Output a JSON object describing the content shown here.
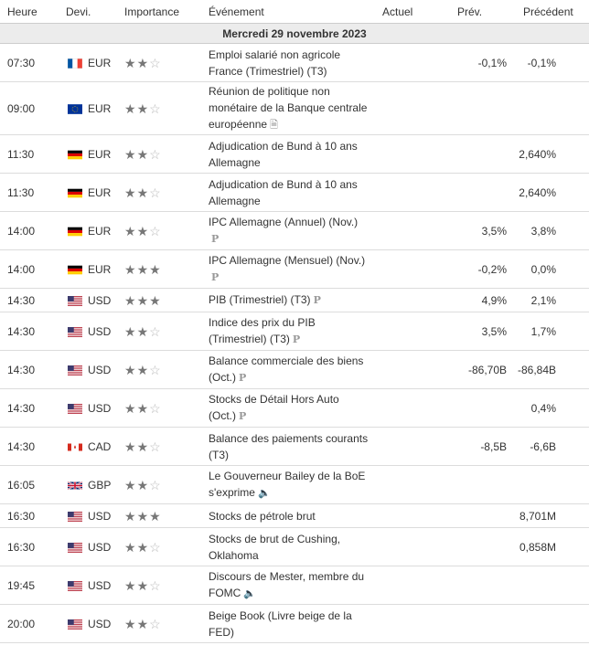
{
  "headers": {
    "time": "Heure",
    "currency": "Devi.",
    "importance": "Importance",
    "event": "Événement",
    "actual": "Actuel",
    "forecast": "Prév.",
    "previous": "Précédent"
  },
  "date_label": "Mercredi 29 novembre 2023",
  "rows": [
    {
      "time": "07:30",
      "flag": "fr",
      "cur": "EUR",
      "stars": 2,
      "lines": [
        "Emploi salarié non agricole",
        "France (Trimestriel) (T3)"
      ],
      "icon": "",
      "actual": "",
      "forecast": "-0,1%",
      "previous": "-0,1%"
    },
    {
      "time": "09:00",
      "flag": "eu",
      "cur": "EUR",
      "stars": 2,
      "lines": [
        "Réunion de politique non",
        "monétaire de la Banque centrale",
        "européenne"
      ],
      "icon": "document-icon",
      "actual": "",
      "forecast": "",
      "previous": ""
    },
    {
      "time": "11:30",
      "flag": "de",
      "cur": "EUR",
      "stars": 2,
      "lines": [
        "Adjudication de Bund à 10 ans",
        "Allemagne"
      ],
      "icon": "",
      "actual": "",
      "forecast": "",
      "previous": "2,640%"
    },
    {
      "time": "11:30",
      "flag": "de",
      "cur": "EUR",
      "stars": 2,
      "lines": [
        "Adjudication de Bund à 10 ans",
        "Allemagne"
      ],
      "icon": "",
      "actual": "",
      "forecast": "",
      "previous": "2,640%"
    },
    {
      "time": "14:00",
      "flag": "de",
      "cur": "EUR",
      "stars": 2,
      "lines": [
        "IPC Allemagne (Annuel) (Nov.)",
        ""
      ],
      "icon": "preliminary-icon",
      "actual": "",
      "forecast": "3,5%",
      "previous": "3,8%"
    },
    {
      "time": "14:00",
      "flag": "de",
      "cur": "EUR",
      "stars": 3,
      "lines": [
        "IPC Allemagne (Mensuel) (Nov.)",
        ""
      ],
      "icon": "preliminary-icon",
      "actual": "",
      "forecast": "-0,2%",
      "previous": "0,0%"
    },
    {
      "time": "14:30",
      "flag": "us",
      "cur": "USD",
      "stars": 3,
      "lines": [
        "PIB (Trimestriel) (T3)"
      ],
      "icon": "preliminary-icon",
      "actual": "",
      "forecast": "4,9%",
      "previous": "2,1%"
    },
    {
      "time": "14:30",
      "flag": "us",
      "cur": "USD",
      "stars": 2,
      "lines": [
        "Indice des prix du PIB",
        "(Trimestriel) (T3)"
      ],
      "icon": "preliminary-icon",
      "actual": "",
      "forecast": "3,5%",
      "previous": "1,7%"
    },
    {
      "time": "14:30",
      "flag": "us",
      "cur": "USD",
      "stars": 2,
      "lines": [
        "Balance commerciale des biens",
        "(Oct.)"
      ],
      "icon": "preliminary-icon",
      "actual": "",
      "forecast": "-86,70B",
      "previous": "-86,84B"
    },
    {
      "time": "14:30",
      "flag": "us",
      "cur": "USD",
      "stars": 2,
      "lines": [
        "Stocks de Détail Hors Auto",
        "(Oct.)"
      ],
      "icon": "preliminary-icon",
      "actual": "",
      "forecast": "",
      "previous": "0,4%"
    },
    {
      "time": "14:30",
      "flag": "ca",
      "cur": "CAD",
      "stars": 2,
      "lines": [
        "Balance des paiements courants",
        "(T3)"
      ],
      "icon": "",
      "actual": "",
      "forecast": "-8,5B",
      "previous": "-6,6B"
    },
    {
      "time": "16:05",
      "flag": "gb",
      "cur": "GBP",
      "stars": 2,
      "lines": [
        "Le Gouverneur Bailey de la BoE",
        "s'exprime"
      ],
      "icon": "speaker-icon",
      "actual": "",
      "forecast": "",
      "previous": ""
    },
    {
      "time": "16:30",
      "flag": "us",
      "cur": "USD",
      "stars": 3,
      "lines": [
        "Stocks de pétrole brut"
      ],
      "icon": "",
      "actual": "",
      "forecast": "",
      "previous": "8,701M"
    },
    {
      "time": "16:30",
      "flag": "us",
      "cur": "USD",
      "stars": 2,
      "lines": [
        "Stocks de brut de Cushing,",
        "Oklahoma"
      ],
      "icon": "",
      "actual": "",
      "forecast": "",
      "previous": "0,858M"
    },
    {
      "time": "19:45",
      "flag": "us",
      "cur": "USD",
      "stars": 2,
      "lines": [
        "Discours de Mester, membre du",
        "FOMC"
      ],
      "icon": "speaker-icon",
      "actual": "",
      "forecast": "",
      "previous": ""
    },
    {
      "time": "20:00",
      "flag": "us",
      "cur": "USD",
      "stars": 2,
      "lines": [
        "Beige Book (Livre beige de la",
        "FED)"
      ],
      "icon": "",
      "actual": "",
      "forecast": "",
      "previous": ""
    }
  ],
  "colors": {
    "date_row_bg": "#ececec",
    "star_on": "#777777",
    "star_off": "#b8b8b8"
  }
}
